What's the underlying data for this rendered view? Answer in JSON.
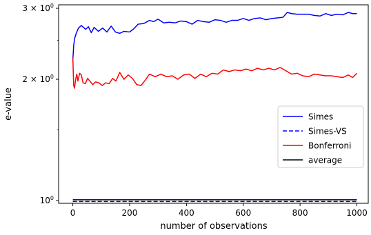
{
  "chart_data": {
    "type": "line",
    "xlabel": "number of observations",
    "ylabel": "e-value",
    "yscale": "log",
    "xlim": [
      -50,
      1040
    ],
    "ylim": [
      0.985,
      3.06
    ],
    "grid": false,
    "legend_position": "center-right",
    "x_ticks": [
      {
        "value": 0,
        "label": "0"
      },
      {
        "value": 200,
        "label": "200"
      },
      {
        "value": 400,
        "label": "400"
      },
      {
        "value": 600,
        "label": "600"
      },
      {
        "value": 800,
        "label": "800"
      },
      {
        "value": 1000,
        "label": "1000"
      }
    ],
    "y_ticks": [
      {
        "value": 1,
        "base": "10",
        "exp": "0"
      },
      {
        "value": 2,
        "base": "2 × 10",
        "exp": "0"
      },
      {
        "value": 3,
        "base": "3 × 10",
        "exp": "0"
      }
    ],
    "series": [
      {
        "name": "Simes",
        "color": "#0000ff",
        "dash": "solid",
        "points": [
          [
            0,
            2.23
          ],
          [
            3,
            2.42
          ],
          [
            6,
            2.52
          ],
          [
            12,
            2.6
          ],
          [
            20,
            2.68
          ],
          [
            30,
            2.72
          ],
          [
            45,
            2.66
          ],
          [
            55,
            2.7
          ],
          [
            65,
            2.61
          ],
          [
            75,
            2.69
          ],
          [
            90,
            2.63
          ],
          [
            105,
            2.68
          ],
          [
            120,
            2.62
          ],
          [
            135,
            2.71
          ],
          [
            150,
            2.62
          ],
          [
            165,
            2.6
          ],
          [
            180,
            2.63
          ],
          [
            200,
            2.62
          ],
          [
            215,
            2.67
          ],
          [
            230,
            2.74
          ],
          [
            250,
            2.75
          ],
          [
            270,
            2.8
          ],
          [
            285,
            2.78
          ],
          [
            300,
            2.82
          ],
          [
            320,
            2.76
          ],
          [
            340,
            2.77
          ],
          [
            360,
            2.76
          ],
          [
            380,
            2.79
          ],
          [
            400,
            2.78
          ],
          [
            420,
            2.74
          ],
          [
            440,
            2.8
          ],
          [
            460,
            2.78
          ],
          [
            480,
            2.77
          ],
          [
            500,
            2.81
          ],
          [
            520,
            2.8
          ],
          [
            540,
            2.77
          ],
          [
            560,
            2.8
          ],
          [
            580,
            2.8
          ],
          [
            600,
            2.83
          ],
          [
            620,
            2.8
          ],
          [
            640,
            2.83
          ],
          [
            660,
            2.84
          ],
          [
            680,
            2.81
          ],
          [
            700,
            2.83
          ],
          [
            720,
            2.84
          ],
          [
            740,
            2.85
          ],
          [
            755,
            2.93
          ],
          [
            770,
            2.91
          ],
          [
            790,
            2.9
          ],
          [
            810,
            2.9
          ],
          [
            830,
            2.9
          ],
          [
            850,
            2.88
          ],
          [
            870,
            2.87
          ],
          [
            890,
            2.91
          ],
          [
            910,
            2.88
          ],
          [
            930,
            2.9
          ],
          [
            950,
            2.89
          ],
          [
            970,
            2.93
          ],
          [
            985,
            2.91
          ],
          [
            1000,
            2.91
          ]
        ]
      },
      {
        "name": "Simes-VS",
        "color": "#0000ff",
        "dash": "dashed",
        "points": [
          [
            0,
            0.995
          ],
          [
            1000,
            0.995
          ]
        ]
      },
      {
        "name": "Bonferroni",
        "color": "#ff0000",
        "dash": "solid",
        "points": [
          [
            0,
            2.27
          ],
          [
            3,
            1.93
          ],
          [
            6,
            1.9
          ],
          [
            10,
            2.0
          ],
          [
            14,
            2.06
          ],
          [
            18,
            1.98
          ],
          [
            24,
            2.07
          ],
          [
            30,
            2.05
          ],
          [
            36,
            1.96
          ],
          [
            44,
            1.95
          ],
          [
            52,
            2.01
          ],
          [
            60,
            1.98
          ],
          [
            70,
            1.94
          ],
          [
            80,
            1.97
          ],
          [
            92,
            1.96
          ],
          [
            104,
            1.93
          ],
          [
            115,
            1.96
          ],
          [
            128,
            1.95
          ],
          [
            140,
            2.01
          ],
          [
            152,
            1.98
          ],
          [
            165,
            2.08
          ],
          [
            180,
            2.0
          ],
          [
            195,
            2.05
          ],
          [
            210,
            2.01
          ],
          [
            225,
            1.94
          ],
          [
            240,
            1.93
          ],
          [
            255,
            1.99
          ],
          [
            270,
            2.06
          ],
          [
            290,
            2.03
          ],
          [
            310,
            2.06
          ],
          [
            330,
            2.03
          ],
          [
            350,
            2.04
          ],
          [
            370,
            2.0
          ],
          [
            390,
            2.05
          ],
          [
            410,
            2.06
          ],
          [
            430,
            2.01
          ],
          [
            450,
            2.06
          ],
          [
            470,
            2.03
          ],
          [
            490,
            2.07
          ],
          [
            510,
            2.06
          ],
          [
            530,
            2.11
          ],
          [
            550,
            2.09
          ],
          [
            570,
            2.11
          ],
          [
            590,
            2.1
          ],
          [
            610,
            2.12
          ],
          [
            630,
            2.1
          ],
          [
            650,
            2.13
          ],
          [
            670,
            2.11
          ],
          [
            690,
            2.13
          ],
          [
            710,
            2.11
          ],
          [
            730,
            2.14
          ],
          [
            750,
            2.1
          ],
          [
            770,
            2.06
          ],
          [
            790,
            2.07
          ],
          [
            810,
            2.04
          ],
          [
            830,
            2.03
          ],
          [
            850,
            2.06
          ],
          [
            870,
            2.05
          ],
          [
            890,
            2.04
          ],
          [
            910,
            2.04
          ],
          [
            930,
            2.03
          ],
          [
            950,
            2.02
          ],
          [
            970,
            2.05
          ],
          [
            985,
            2.02
          ],
          [
            1000,
            2.07
          ]
        ]
      },
      {
        "name": "average",
        "color": "#000000",
        "dash": "solid",
        "points": [
          [
            0,
            1.005
          ],
          [
            1000,
            1.005
          ]
        ]
      }
    ]
  }
}
